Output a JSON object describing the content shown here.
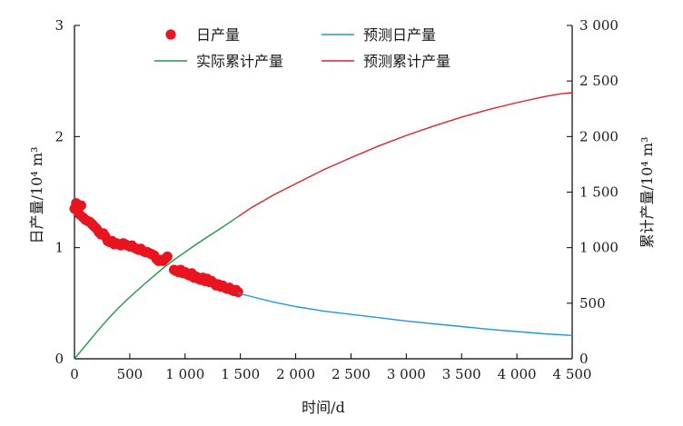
{
  "chart_data": {
    "type": "line",
    "xlabel": "时间/d",
    "ylabel_left": "日产量/10⁴ m³",
    "ylabel_right": "累计产量/10⁴ m³",
    "xlim": [
      0,
      4500
    ],
    "ylim_left": [
      0,
      3
    ],
    "ylim_right": [
      0,
      3000
    ],
    "x_ticks": [
      0,
      500,
      1000,
      1500,
      2000,
      2500,
      3000,
      3500,
      4000,
      4500
    ],
    "x_tick_labels": [
      "0",
      "500",
      "1 000",
      "1 500",
      "2 000",
      "2 500",
      "3 000",
      "3 500",
      "4 000",
      "4 500"
    ],
    "y_left_ticks": [
      0,
      1,
      2,
      3
    ],
    "y_left_tick_labels": [
      "0",
      "1",
      "2",
      "3"
    ],
    "y_right_ticks": [
      0,
      500,
      1000,
      1500,
      2000,
      2500,
      3000
    ],
    "y_right_tick_labels": [
      "0",
      "500",
      "1 000",
      "1 500",
      "2 000",
      "2 500",
      "3 000"
    ],
    "grid": false,
    "legend_position": "top-center",
    "series": [
      {
        "name": "日产量",
        "kind": "scatter",
        "axis": "left",
        "color": "#e8141e",
        "x": [
          0,
          15,
          30,
          45,
          60,
          80,
          100,
          120,
          140,
          160,
          180,
          200,
          220,
          240,
          260,
          280,
          300,
          320,
          340,
          360,
          380,
          400,
          420,
          440,
          460,
          480,
          500,
          520,
          540,
          560,
          580,
          600,
          620,
          640,
          660,
          680,
          700,
          720,
          740,
          760,
          780,
          800,
          820,
          840,
          900,
          920,
          940,
          960,
          980,
          1000,
          1020,
          1040,
          1060,
          1080,
          1100,
          1120,
          1140,
          1160,
          1180,
          1200,
          1220,
          1240,
          1260,
          1280,
          1300,
          1320,
          1340,
          1360,
          1380,
          1400,
          1420,
          1440,
          1460,
          1480
        ],
        "values": [
          1.35,
          1.4,
          1.35,
          1.3,
          1.38,
          1.27,
          1.25,
          1.24,
          1.23,
          1.21,
          1.19,
          1.17,
          1.14,
          1.12,
          1.13,
          1.1,
          1.06,
          1.05,
          1.06,
          1.03,
          1.04,
          1.03,
          1.02,
          1.04,
          1.03,
          1.02,
          1.01,
          1.02,
          1.0,
          0.99,
          0.98,
          0.99,
          0.97,
          0.96,
          0.96,
          0.95,
          0.94,
          0.93,
          0.9,
          0.88,
          0.89,
          0.88,
          0.9,
          0.92,
          0.8,
          0.79,
          0.78,
          0.8,
          0.77,
          0.78,
          0.76,
          0.75,
          0.77,
          0.73,
          0.74,
          0.72,
          0.71,
          0.73,
          0.7,
          0.72,
          0.69,
          0.7,
          0.68,
          0.66,
          0.67,
          0.65,
          0.66,
          0.64,
          0.63,
          0.64,
          0.62,
          0.61,
          0.62,
          0.6
        ]
      },
      {
        "name": "预测日产量",
        "kind": "line",
        "axis": "left",
        "color": "#1f9ad6",
        "x": [
          1480,
          1600,
          1800,
          2000,
          2250,
          2500,
          2750,
          3000,
          3250,
          3500,
          3750,
          4000,
          4250,
          4500
        ],
        "values": [
          0.59,
          0.56,
          0.51,
          0.47,
          0.43,
          0.4,
          0.37,
          0.34,
          0.315,
          0.29,
          0.265,
          0.245,
          0.225,
          0.21
        ]
      },
      {
        "name": "实际累计产量",
        "kind": "line",
        "axis": "right",
        "color": "#1d9a45",
        "x": [
          0,
          100,
          200,
          300,
          400,
          500,
          600,
          700,
          800,
          900,
          1000,
          1100,
          1200,
          1300,
          1400,
          1480
        ],
        "values": [
          0,
          120,
          240,
          355,
          460,
          555,
          645,
          730,
          815,
          890,
          960,
          1030,
          1095,
          1160,
          1225,
          1280
        ]
      },
      {
        "name": "预测累计产量",
        "kind": "line",
        "axis": "right",
        "color": "#e0212b",
        "x": [
          1480,
          1600,
          1800,
          2000,
          2250,
          2500,
          2750,
          3000,
          3250,
          3500,
          3750,
          4000,
          4250,
          4400,
          4500
        ],
        "values": [
          1280,
          1360,
          1475,
          1575,
          1700,
          1810,
          1915,
          2010,
          2095,
          2175,
          2245,
          2305,
          2360,
          2385,
          2395
        ]
      }
    ]
  }
}
